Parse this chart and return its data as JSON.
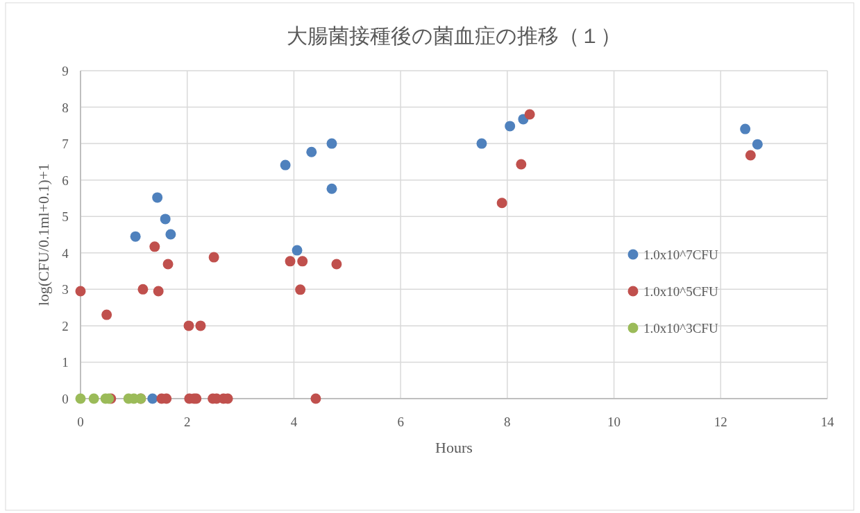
{
  "chart_data": {
    "type": "scatter",
    "title": "大腸菌接種後の菌血症の推移（１）",
    "xlabel": "Hours",
    "ylabel": "log(CFU/0.1ml+0.1)+1",
    "xlim": [
      0,
      14
    ],
    "xticks": [
      0,
      2,
      4,
      6,
      8,
      10,
      12,
      14
    ],
    "ylim": [
      0,
      9
    ],
    "yticks": [
      0,
      1,
      2,
      3,
      4,
      5,
      6,
      7,
      8,
      9
    ],
    "grid": true,
    "legend": "right",
    "marker": "circle",
    "series": [
      {
        "name": "1.0x10^7CFU",
        "color": "#4f81bd",
        "x": [
          1.03,
          1.44,
          1.59,
          1.69,
          1.35,
          3.84,
          4.06,
          4.33,
          4.71,
          4.71,
          7.52,
          8.05,
          8.3,
          12.46,
          12.69
        ],
        "values": [
          4.45,
          5.52,
          4.93,
          4.51,
          0,
          6.41,
          4.07,
          6.77,
          7.0,
          5.76,
          7.0,
          7.48,
          7.67,
          7.4,
          6.98
        ]
      },
      {
        "name": "1.0x10^5CFU",
        "color": "#c0504d",
        "x": [
          0,
          0.49,
          1.39,
          1.17,
          1.46,
          1.64,
          2.03,
          2.25,
          2.5,
          3.93,
          4.16,
          4.12,
          4.8,
          4.41,
          7.9,
          8.26,
          8.42,
          12.56,
          0.57,
          1.13,
          1.52,
          1.61,
          2.04,
          2.13,
          2.17,
          2.48,
          2.55,
          2.68,
          2.76
        ],
        "values": [
          2.95,
          2.3,
          4.17,
          3.0,
          2.95,
          3.69,
          2.0,
          2.0,
          3.88,
          3.77,
          3.77,
          2.99,
          3.69,
          0,
          5.37,
          6.43,
          7.8,
          6.68,
          0,
          0,
          0,
          0,
          0,
          0,
          0,
          0,
          0,
          0,
          0
        ]
      },
      {
        "name": "1.0x10^3CFU",
        "color": "#9bbb59",
        "x": [
          0,
          0.25,
          0.47,
          0.53,
          0.9,
          1.0,
          1.13
        ],
        "values": [
          0,
          0,
          0,
          0,
          0,
          0,
          0
        ]
      }
    ]
  }
}
